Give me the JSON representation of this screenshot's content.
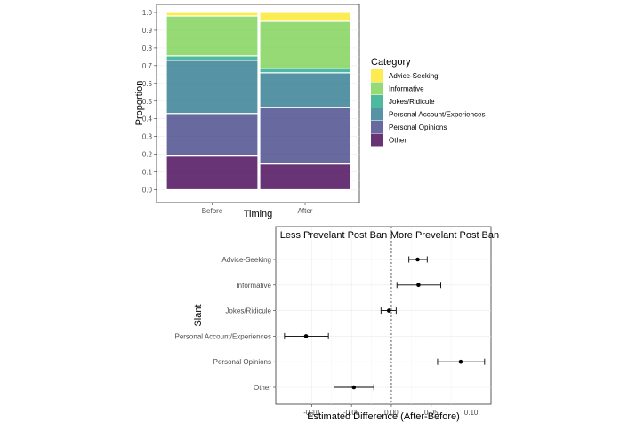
{
  "chart_data": [
    {
      "type": "bar",
      "subtype": "stacked-proportion",
      "title": "",
      "xlabel": "Timing",
      "ylabel": "Proportion",
      "ylim": [
        0,
        1
      ],
      "yticks": [
        "0.0",
        "0.1",
        "0.2",
        "0.3",
        "0.4",
        "0.5",
        "0.6",
        "0.7",
        "0.8",
        "0.9",
        "1.0"
      ],
      "categories": [
        "Before",
        "After"
      ],
      "legend_title": "Category",
      "legend_position": "right",
      "series": [
        {
          "name": "Other",
          "color": "#440154",
          "values": [
            0.19,
            0.145
          ]
        },
        {
          "name": "Personal Opinions",
          "color": "#414487",
          "values": [
            0.24,
            0.32
          ]
        },
        {
          "name": "Personal Account/Experiences",
          "color": "#2a788e",
          "values": [
            0.3,
            0.195
          ]
        },
        {
          "name": "Jokes/Ridicule",
          "color": "#22a884",
          "values": [
            0.025,
            0.025
          ]
        },
        {
          "name": "Informative",
          "color": "#7ad151",
          "values": [
            0.225,
            0.265
          ]
        },
        {
          "name": "Advice-Seeking",
          "color": "#fde725",
          "values": [
            0.02,
            0.05
          ]
        }
      ],
      "legend_order": [
        "Advice-Seeking",
        "Informative",
        "Jokes/Ridicule",
        "Personal Account/Experiences",
        "Personal Opinions",
        "Other"
      ]
    },
    {
      "type": "scatter",
      "subtype": "point-errorbar",
      "title": "",
      "xlabel": "Estimated Difference (After-Before)",
      "ylabel": "Slant",
      "xlim": [
        -0.145,
        0.125
      ],
      "xticks": [
        "-0.10",
        "-0.05",
        "0.00",
        "0.05",
        "0.10"
      ],
      "reference_line_x": 0,
      "annotations": [
        "Less Prevelant Post Ban",
        "More Prevelant Post Ban"
      ],
      "categories": [
        "Advice-Seeking",
        "Informative",
        "Jokes/Ridicule",
        "Personal Account/Experiences",
        "Personal Opinions",
        "Other"
      ],
      "estimates": [
        0.033,
        0.034,
        -0.003,
        -0.107,
        0.087,
        -0.047
      ],
      "lower": [
        0.022,
        0.007,
        -0.013,
        -0.134,
        0.058,
        -0.072
      ],
      "upper": [
        0.045,
        0.062,
        0.006,
        -0.079,
        0.117,
        -0.022
      ]
    }
  ]
}
